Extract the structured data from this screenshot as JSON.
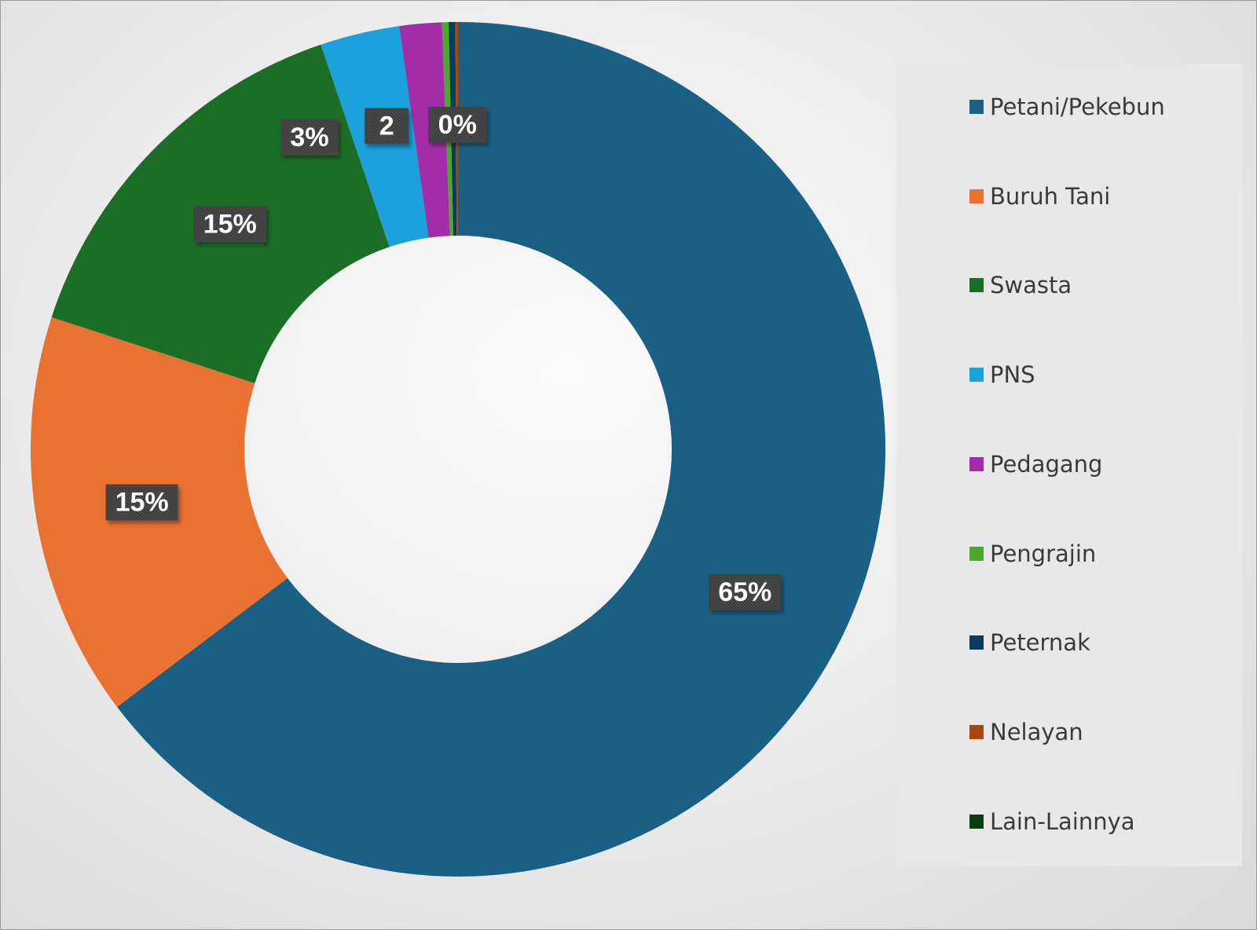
{
  "chart_data": {
    "type": "pie",
    "style": "donut",
    "title": "",
    "legend_position": "right",
    "categories": [
      "Petani/Pekebun",
      "Buruh Tani",
      "Swasta",
      "PNS",
      "Pedagang",
      "Pengrajin",
      "Peternak",
      "Nelayan",
      "Lain-Lainnya"
    ],
    "values": [
      64.7,
      15.3,
      14.8,
      3.0,
      1.6,
      0.25,
      0.25,
      0.1,
      0.0
    ],
    "colors": [
      "#1a6084",
      "#e97132",
      "#1b6e26",
      "#1ba1db",
      "#a12ea8",
      "#4ea72e",
      "#0d3b5b",
      "#a8460b",
      "#0a3d14"
    ],
    "data_labels": [
      {
        "category": "Petani/Pekebun",
        "text": "65%"
      },
      {
        "category": "Buruh Tani",
        "text": "15%"
      },
      {
        "category": "Swasta",
        "text": "15%"
      },
      {
        "category": "PNS",
        "text": "3%"
      },
      {
        "category": "Pedagang",
        "text": "2"
      },
      {
        "category": "Peternak",
        "text": "0%"
      }
    ]
  }
}
